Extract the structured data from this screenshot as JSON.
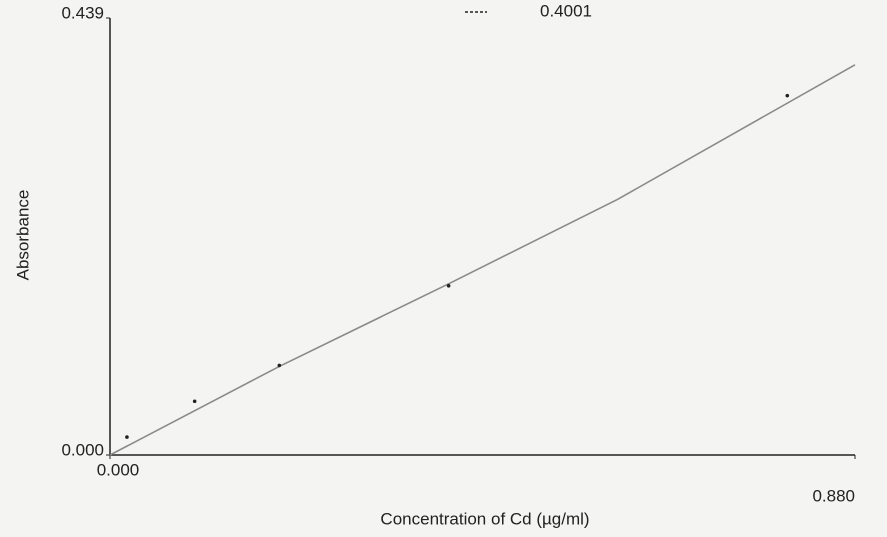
{
  "chart_data": {
    "type": "scatter",
    "x_label": "Concentration of Cd (µg/ml)",
    "y_label": "Absorbance",
    "annotation": "0.4001",
    "x": [
      0.02,
      0.1,
      0.2,
      0.4,
      0.8
    ],
    "values": [
      0.018,
      0.054,
      0.09,
      0.17,
      0.361
    ],
    "color": "#222222",
    "fit_line": {
      "x": [
        0,
        0.2,
        0.4,
        0.6,
        0.88
      ],
      "values": [
        0,
        0.089,
        0.172,
        0.257,
        0.392
      ],
      "color": "#8a8a8a"
    },
    "xlim": [
      0,
      0.88
    ],
    "ylim": [
      0,
      0.439
    ],
    "xticks": [
      {
        "value": 0,
        "label": "0.000"
      },
      {
        "value": 0.88,
        "label": "0.880"
      }
    ],
    "yticks": [
      {
        "value": 0,
        "label": "0.000"
      },
      0.439
    ]
  }
}
